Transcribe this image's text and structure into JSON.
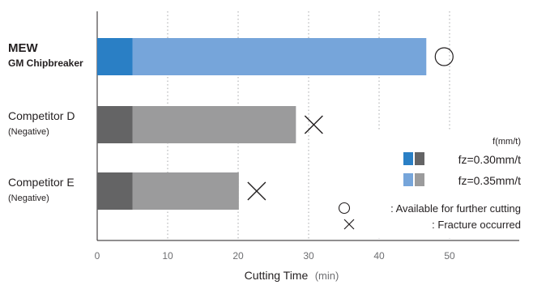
{
  "chart_data": {
    "type": "bar",
    "orientation": "horizontal",
    "stacked": true,
    "xlabel": "Cutting Time",
    "xlabel_unit": "(min)",
    "xlim": [
      0,
      60
    ],
    "xticks": [
      "0",
      "10",
      "20",
      "30",
      "40",
      "50"
    ],
    "grid": "vertical dotted",
    "categories": [
      {
        "name": "MEW",
        "sub": "GM Chipbreaker",
        "bold": true,
        "base_color": "#2a7fc5",
        "ext_color": "#76a5da",
        "segments": [
          5,
          41.7
        ],
        "total": 46.7,
        "result": "circle"
      },
      {
        "name": "Competitor D",
        "sub": "(Negative)",
        "bold": false,
        "base_color": "#646465",
        "ext_color": "#9b9b9c",
        "segments": [
          5,
          23.2
        ],
        "total": 28.2,
        "result": "cross"
      },
      {
        "name": "Competitor E",
        "sub": "(Negative)",
        "bold": false,
        "base_color": "#646465",
        "ext_color": "#9b9b9c",
        "segments": [
          5,
          15.1
        ],
        "total": 20.1,
        "result": "cross"
      }
    ],
    "legend": {
      "title": "f(mm/t)",
      "items": [
        {
          "label": "fz=0.30mm/t",
          "colors": [
            "#2a7fc5",
            "#646465"
          ]
        },
        {
          "label": "fz=0.35mm/t",
          "colors": [
            "#76a5da",
            "#9b9b9c"
          ]
        }
      ],
      "markers": [
        {
          "symbol": "circle",
          "label": ": Available for further cutting"
        },
        {
          "symbol": "cross",
          "label": ": Fracture occurred"
        }
      ],
      "position": "bottom-right"
    }
  }
}
